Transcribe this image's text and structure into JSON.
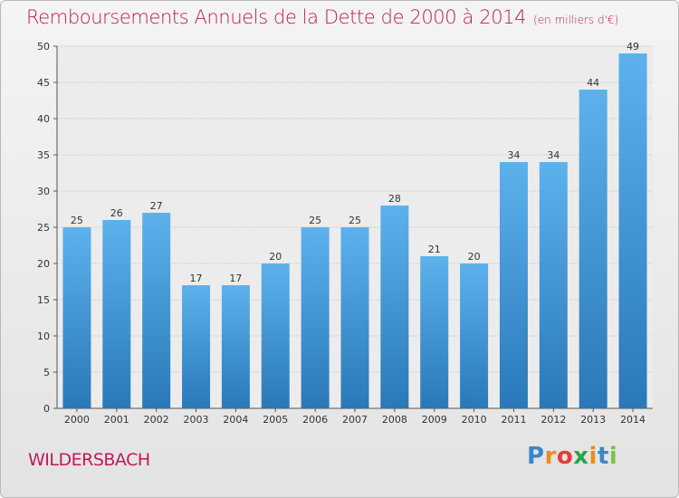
{
  "header": {
    "title": "Remboursements Annuels de la Dette de 2000 à 2014",
    "unit": "(en milliers d'€)"
  },
  "footer": {
    "place": "WILDERSBACH",
    "brand": "Proxiti"
  },
  "colors": {
    "title": "#c2185b",
    "bar_top": "#5cb2ec",
    "bar_bottom": "#2a78b8"
  },
  "chart_data": {
    "type": "bar",
    "title": "Remboursements Annuels de la Dette de 2000 à 2014",
    "subtitle": "(en milliers d'€)",
    "categories": [
      "2000",
      "2001",
      "2002",
      "2003",
      "2004",
      "2005",
      "2006",
      "2007",
      "2008",
      "2009",
      "2010",
      "2011",
      "2012",
      "2013",
      "2014"
    ],
    "values": [
      25,
      26,
      27,
      17,
      17,
      20,
      25,
      25,
      28,
      21,
      20,
      34,
      34,
      44,
      49
    ],
    "ylim": [
      0,
      50
    ],
    "yticks": [
      0,
      5,
      10,
      15,
      20,
      25,
      30,
      35,
      40,
      45,
      50
    ],
    "grid": true,
    "data_labels": true
  }
}
